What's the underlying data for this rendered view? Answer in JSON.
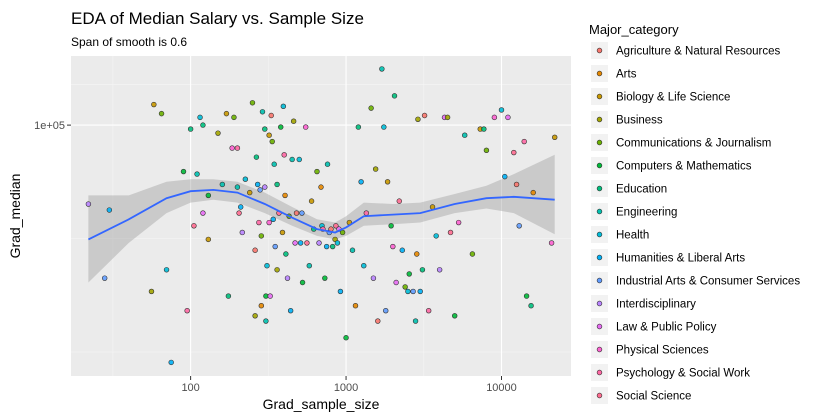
{
  "chart_data": {
    "type": "scatter",
    "title": "EDA of Median Salary vs. Sample Size",
    "subtitle": "Span of smooth is 0.6",
    "xlabel": "Grad_sample_size",
    "ylabel": "Grad_median",
    "x_scale": "log10",
    "y_scale": "log10",
    "xlim": [
      17,
      28000
    ],
    "ylim": [
      28000,
      142000
    ],
    "x_ticks": [
      {
        "value": 100,
        "label": "100"
      },
      {
        "value": 1000,
        "label": "1000"
      },
      {
        "value": 10000,
        "label": "10000"
      }
    ],
    "y_ticks": [
      {
        "value": 100000,
        "label": "1e+05"
      }
    ],
    "grid": true,
    "legend": {
      "title": "Major_category",
      "position": "right",
      "entries": [
        {
          "name": "Agriculture & Natural Resources",
          "color": "#F8766D"
        },
        {
          "name": "Arts",
          "color": "#E58700"
        },
        {
          "name": "Biology & Life Science",
          "color": "#C99800"
        },
        {
          "name": "Business",
          "color": "#A3A500"
        },
        {
          "name": "Communications & Journalism",
          "color": "#6BB100"
        },
        {
          "name": "Computers & Mathematics",
          "color": "#00BA38"
        },
        {
          "name": "Education",
          "color": "#00BF7D"
        },
        {
          "name": "Engineering",
          "color": "#00C0AF"
        },
        {
          "name": "Health",
          "color": "#00BCD8"
        },
        {
          "name": "Humanities & Liberal Arts",
          "color": "#00B0F6"
        },
        {
          "name": "Industrial Arts & Consumer Services",
          "color": "#619CFF"
        },
        {
          "name": "Interdisciplinary",
          "color": "#B983FF"
        },
        {
          "name": "Law & Public Policy",
          "color": "#E76BF3"
        },
        {
          "name": "Physical Sciences",
          "color": "#FD61D1"
        },
        {
          "name": "Psychology & Social Work",
          "color": "#FF67A4"
        },
        {
          "name": "Social Science",
          "color": "#FF6C90"
        }
      ]
    },
    "points": [
      {
        "x": 22,
        "y": 67000,
        "c": 11
      },
      {
        "x": 28,
        "y": 46000,
        "c": 10
      },
      {
        "x": 30,
        "y": 65000,
        "c": 9
      },
      {
        "x": 56,
        "y": 43000,
        "c": 3
      },
      {
        "x": 58,
        "y": 111000,
        "c": 2
      },
      {
        "x": 65,
        "y": 106000,
        "c": 4
      },
      {
        "x": 70,
        "y": 48000,
        "c": 8
      },
      {
        "x": 75,
        "y": 30000,
        "c": 9
      },
      {
        "x": 90,
        "y": 79000,
        "c": 5
      },
      {
        "x": 95,
        "y": 39000,
        "c": 14
      },
      {
        "x": 100,
        "y": 98000,
        "c": 6
      },
      {
        "x": 105,
        "y": 60000,
        "c": 15
      },
      {
        "x": 110,
        "y": 78000,
        "c": 7
      },
      {
        "x": 115,
        "y": 104000,
        "c": 8
      },
      {
        "x": 120,
        "y": 100000,
        "c": 6
      },
      {
        "x": 120,
        "y": 64000,
        "c": 12
      },
      {
        "x": 130,
        "y": 70000,
        "c": 5
      },
      {
        "x": 130,
        "y": 56000,
        "c": 2
      },
      {
        "x": 150,
        "y": 96000,
        "c": 3
      },
      {
        "x": 160,
        "y": 74000,
        "c": 7
      },
      {
        "x": 170,
        "y": 106000,
        "c": 2
      },
      {
        "x": 175,
        "y": 42000,
        "c": 6
      },
      {
        "x": 185,
        "y": 89000,
        "c": 13
      },
      {
        "x": 190,
        "y": 104000,
        "c": 4
      },
      {
        "x": 200,
        "y": 89000,
        "c": 14
      },
      {
        "x": 200,
        "y": 73000,
        "c": 7
      },
      {
        "x": 205,
        "y": 64000,
        "c": 15
      },
      {
        "x": 210,
        "y": 66000,
        "c": 9
      },
      {
        "x": 215,
        "y": 58000,
        "c": 11
      },
      {
        "x": 225,
        "y": 76000,
        "c": 8
      },
      {
        "x": 240,
        "y": 71000,
        "c": 2
      },
      {
        "x": 250,
        "y": 112000,
        "c": 4
      },
      {
        "x": 260,
        "y": 53000,
        "c": 0
      },
      {
        "x": 260,
        "y": 38000,
        "c": 3
      },
      {
        "x": 265,
        "y": 85000,
        "c": 6
      },
      {
        "x": 270,
        "y": 74000,
        "c": 9
      },
      {
        "x": 275,
        "y": 61000,
        "c": 14
      },
      {
        "x": 280,
        "y": 72000,
        "c": 10
      },
      {
        "x": 285,
        "y": 57000,
        "c": 4
      },
      {
        "x": 285,
        "y": 40000,
        "c": 1
      },
      {
        "x": 290,
        "y": 107000,
        "c": 7
      },
      {
        "x": 300,
        "y": 98000,
        "c": 6
      },
      {
        "x": 300,
        "y": 73000,
        "c": 11
      },
      {
        "x": 305,
        "y": 37000,
        "c": 7
      },
      {
        "x": 305,
        "y": 42000,
        "c": 5
      },
      {
        "x": 310,
        "y": 49000,
        "c": 8
      },
      {
        "x": 320,
        "y": 95000,
        "c": 2
      },
      {
        "x": 320,
        "y": 61000,
        "c": 13
      },
      {
        "x": 325,
        "y": 42000,
        "c": 12
      },
      {
        "x": 330,
        "y": 105000,
        "c": 0
      },
      {
        "x": 335,
        "y": 92000,
        "c": 4
      },
      {
        "x": 340,
        "y": 62000,
        "c": 9
      },
      {
        "x": 345,
        "y": 82000,
        "c": 7
      },
      {
        "x": 350,
        "y": 54000,
        "c": 10
      },
      {
        "x": 360,
        "y": 74000,
        "c": 6
      },
      {
        "x": 360,
        "y": 48000,
        "c": 3
      },
      {
        "x": 370,
        "y": 64000,
        "c": 15
      },
      {
        "x": 380,
        "y": 99000,
        "c": 5
      },
      {
        "x": 390,
        "y": 58000,
        "c": 2
      },
      {
        "x": 395,
        "y": 110000,
        "c": 8
      },
      {
        "x": 400,
        "y": 86000,
        "c": 14
      },
      {
        "x": 405,
        "y": 70000,
        "c": 1
      },
      {
        "x": 410,
        "y": 52000,
        "c": 6
      },
      {
        "x": 420,
        "y": 46000,
        "c": 11
      },
      {
        "x": 430,
        "y": 63000,
        "c": 4
      },
      {
        "x": 440,
        "y": 39000,
        "c": 9
      },
      {
        "x": 450,
        "y": 84000,
        "c": 7
      },
      {
        "x": 460,
        "y": 102000,
        "c": 3
      },
      {
        "x": 470,
        "y": 55000,
        "c": 12
      },
      {
        "x": 480,
        "y": 64000,
        "c": 0
      },
      {
        "x": 500,
        "y": 84000,
        "c": 8
      },
      {
        "x": 510,
        "y": 55000,
        "c": 9
      },
      {
        "x": 520,
        "y": 64000,
        "c": 10
      },
      {
        "x": 525,
        "y": 45000,
        "c": 5
      },
      {
        "x": 550,
        "y": 99000,
        "c": 13
      },
      {
        "x": 560,
        "y": 55000,
        "c": 15
      },
      {
        "x": 580,
        "y": 49000,
        "c": 7
      },
      {
        "x": 600,
        "y": 68000,
        "c": 2
      },
      {
        "x": 620,
        "y": 59000,
        "c": 6
      },
      {
        "x": 650,
        "y": 79000,
        "c": 4
      },
      {
        "x": 670,
        "y": 55000,
        "c": 11
      },
      {
        "x": 690,
        "y": 73000,
        "c": 1
      },
      {
        "x": 700,
        "y": 60000,
        "c": 8
      },
      {
        "x": 710,
        "y": 59000,
        "c": 14
      },
      {
        "x": 730,
        "y": 46000,
        "c": 5
      },
      {
        "x": 750,
        "y": 54000,
        "c": 9
      },
      {
        "x": 760,
        "y": 82000,
        "c": 7
      },
      {
        "x": 780,
        "y": 58000,
        "c": 10
      },
      {
        "x": 800,
        "y": 59000,
        "c": 0
      },
      {
        "x": 820,
        "y": 54000,
        "c": 6
      },
      {
        "x": 850,
        "y": 56000,
        "c": 3
      },
      {
        "x": 860,
        "y": 60000,
        "c": 15
      },
      {
        "x": 880,
        "y": 55000,
        "c": 8
      },
      {
        "x": 900,
        "y": 59000,
        "c": 12
      },
      {
        "x": 920,
        "y": 43000,
        "c": 9
      },
      {
        "x": 950,
        "y": 58000,
        "c": 4
      },
      {
        "x": 1000,
        "y": 34000,
        "c": 5
      },
      {
        "x": 1050,
        "y": 61000,
        "c": 2
      },
      {
        "x": 1100,
        "y": 53000,
        "c": 7
      },
      {
        "x": 1150,
        "y": 40000,
        "c": 1
      },
      {
        "x": 1200,
        "y": 99000,
        "c": 6
      },
      {
        "x": 1250,
        "y": 75000,
        "c": 9
      },
      {
        "x": 1300,
        "y": 49000,
        "c": 8
      },
      {
        "x": 1350,
        "y": 64000,
        "c": 14
      },
      {
        "x": 1450,
        "y": 109000,
        "c": 4
      },
      {
        "x": 1500,
        "y": 46000,
        "c": 11
      },
      {
        "x": 1550,
        "y": 80000,
        "c": 3
      },
      {
        "x": 1600,
        "y": 37000,
        "c": 0
      },
      {
        "x": 1700,
        "y": 133000,
        "c": 7
      },
      {
        "x": 1750,
        "y": 99000,
        "c": 8
      },
      {
        "x": 1800,
        "y": 39000,
        "c": 10
      },
      {
        "x": 1850,
        "y": 75000,
        "c": 2
      },
      {
        "x": 1950,
        "y": 60000,
        "c": 5
      },
      {
        "x": 2000,
        "y": 54000,
        "c": 13
      },
      {
        "x": 2050,
        "y": 116000,
        "c": 6
      },
      {
        "x": 2100,
        "y": 45000,
        "c": 12
      },
      {
        "x": 2200,
        "y": 68000,
        "c": 15
      },
      {
        "x": 2300,
        "y": 53000,
        "c": 9
      },
      {
        "x": 2400,
        "y": 44000,
        "c": 4
      },
      {
        "x": 2500,
        "y": 43000,
        "c": 8
      },
      {
        "x": 2550,
        "y": 47000,
        "c": 5
      },
      {
        "x": 2700,
        "y": 43000,
        "c": 10
      },
      {
        "x": 2800,
        "y": 37000,
        "c": 7
      },
      {
        "x": 2850,
        "y": 52000,
        "c": 1
      },
      {
        "x": 2900,
        "y": 103000,
        "c": 3
      },
      {
        "x": 3000,
        "y": 43000,
        "c": 9
      },
      {
        "x": 3100,
        "y": 48000,
        "c": 6
      },
      {
        "x": 3200,
        "y": 105000,
        "c": 0
      },
      {
        "x": 3400,
        "y": 39000,
        "c": 14
      },
      {
        "x": 3600,
        "y": 66000,
        "c": 2
      },
      {
        "x": 3800,
        "y": 57000,
        "c": 8
      },
      {
        "x": 4000,
        "y": 48000,
        "c": 11
      },
      {
        "x": 4300,
        "y": 104000,
        "c": 12
      },
      {
        "x": 4500,
        "y": 104000,
        "c": 3
      },
      {
        "x": 4700,
        "y": 58000,
        "c": 15
      },
      {
        "x": 5000,
        "y": 38000,
        "c": 5
      },
      {
        "x": 5300,
        "y": 61000,
        "c": 13
      },
      {
        "x": 5800,
        "y": 95000,
        "c": 7
      },
      {
        "x": 6500,
        "y": 52000,
        "c": 4
      },
      {
        "x": 7300,
        "y": 98000,
        "c": 2
      },
      {
        "x": 7700,
        "y": 98000,
        "c": 6
      },
      {
        "x": 8000,
        "y": 88000,
        "c": 4
      },
      {
        "x": 9000,
        "y": 104000,
        "c": 13
      },
      {
        "x": 10000,
        "y": 108000,
        "c": 8
      },
      {
        "x": 10500,
        "y": 77000,
        "c": 9
      },
      {
        "x": 11000,
        "y": 104000,
        "c": 12
      },
      {
        "x": 12000,
        "y": 87000,
        "c": 15
      },
      {
        "x": 12500,
        "y": 74000,
        "c": 0
      },
      {
        "x": 13000,
        "y": 60000,
        "c": 10
      },
      {
        "x": 14000,
        "y": 92000,
        "c": 14
      },
      {
        "x": 14500,
        "y": 42000,
        "c": 5
      },
      {
        "x": 15500,
        "y": 40000,
        "c": 6
      },
      {
        "x": 16000,
        "y": 71000,
        "c": 1
      },
      {
        "x": 21000,
        "y": 55000,
        "c": 13
      },
      {
        "x": 22000,
        "y": 94000,
        "c": 2
      }
    ],
    "smooth": {
      "x": [
        22,
        40,
        70,
        100,
        140,
        200,
        300,
        450,
        650,
        850,
        1000,
        1300,
        2000,
        3000,
        5000,
        8000,
        12000,
        22000
      ],
      "y": [
        56000,
        62000,
        69000,
        71500,
        72000,
        71000,
        67000,
        62500,
        59000,
        58000,
        59500,
        63000,
        63500,
        64000,
        67000,
        69000,
        69500,
        68500
      ],
      "lower": [
        45000,
        55000,
        64000,
        67500,
        68500,
        67500,
        64000,
        60000,
        57000,
        56000,
        57000,
        60000,
        60500,
        61000,
        64000,
        65500,
        64000,
        57500
      ],
      "upper": [
        70000,
        70000,
        75000,
        76000,
        76000,
        75000,
        71000,
        66000,
        62000,
        61000,
        63000,
        67500,
        67000,
        67500,
        70500,
        73500,
        78000,
        86000
      ]
    },
    "smooth_color": "#3366FF",
    "ribbon_color": "#999999",
    "panel_bg": "#EBEBEB"
  }
}
